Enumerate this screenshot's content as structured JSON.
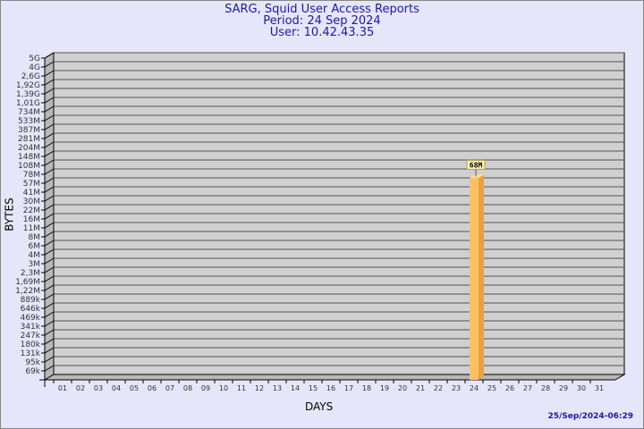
{
  "chart_data": {
    "type": "bar",
    "title": "SARG, Squid User Access Reports",
    "subtitle_period": "Period: 24 Sep 2024",
    "subtitle_user": "User: 10.42.43.35",
    "xlabel": "DAYS",
    "ylabel": "BYTES",
    "y_scale": "log",
    "categories": [
      "01",
      "02",
      "03",
      "04",
      "05",
      "06",
      "07",
      "08",
      "09",
      "10",
      "11",
      "12",
      "13",
      "14",
      "15",
      "16",
      "17",
      "18",
      "19",
      "20",
      "21",
      "22",
      "23",
      "24",
      "25",
      "26",
      "27",
      "28",
      "29",
      "30",
      "31"
    ],
    "values": [
      0,
      0,
      0,
      0,
      0,
      0,
      0,
      0,
      0,
      0,
      0,
      0,
      0,
      0,
      0,
      0,
      0,
      0,
      0,
      0,
      0,
      0,
      0,
      68000000,
      0,
      0,
      0,
      0,
      0,
      0,
      0
    ],
    "data_labels": {
      "24": "68M"
    },
    "y_tick_labels": [
      "69k",
      "95k",
      "131k",
      "180k",
      "247k",
      "341k",
      "469k",
      "646k",
      "889k",
      "1,22M",
      "1,69M",
      "2,3M",
      "3M",
      "4M",
      "6M",
      "8M",
      "11M",
      "16M",
      "22M",
      "30M",
      "41M",
      "57M",
      "78M",
      "108M",
      "148M",
      "204M",
      "281M",
      "387M",
      "533M",
      "734M",
      "1,01G",
      "1,39G",
      "1,92G",
      "2,6G",
      "4G",
      "5G"
    ],
    "ylim": [
      69000,
      5000000000
    ],
    "grid": true,
    "colors": {
      "bar_front": "#ffc060",
      "bar_side": "#e8a040",
      "bar_top": "#ffe090",
      "plot_bg": "#d0d0d0",
      "title": "#1a1aa0"
    }
  },
  "timestamp": "25/Sep/2024-06:29"
}
